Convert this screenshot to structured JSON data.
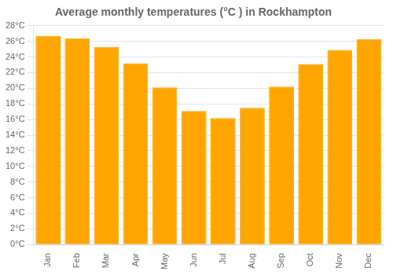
{
  "chart_data": {
    "type": "bar",
    "title": "Average monthly temperatures (°C ) in Rockhampton",
    "categories": [
      "Jan",
      "Feb",
      "Mar",
      "Apr",
      "May",
      "Jun",
      "Jul",
      "Aug",
      "Sep",
      "Oct",
      "Nov",
      "Dec"
    ],
    "values": [
      26.7,
      26.4,
      25.3,
      23.2,
      20.1,
      17.1,
      16.2,
      17.5,
      20.2,
      23.1,
      24.9,
      26.3
    ],
    "color": "#FFA500",
    "ylim": [
      0,
      28
    ],
    "yticks": [
      {
        "value": 0,
        "label": "0°C"
      },
      {
        "value": 2,
        "label": "2°C"
      },
      {
        "value": 4,
        "label": "4°C"
      },
      {
        "value": 6,
        "label": "6°C"
      },
      {
        "value": 8,
        "label": "8°C"
      },
      {
        "value": 10,
        "label": "10°C"
      },
      {
        "value": 12,
        "label": "12°C"
      },
      {
        "value": 14,
        "label": "14°C"
      },
      {
        "value": 16,
        "label": "16°C"
      },
      {
        "value": 18,
        "label": "18°C"
      },
      {
        "value": 20,
        "label": "20°C"
      },
      {
        "value": 22,
        "label": "22°C"
      },
      {
        "value": 24,
        "label": "24°C"
      },
      {
        "value": 26,
        "label": "26°C"
      },
      {
        "value": 28,
        "label": "28°C"
      }
    ],
    "grid": true
  }
}
